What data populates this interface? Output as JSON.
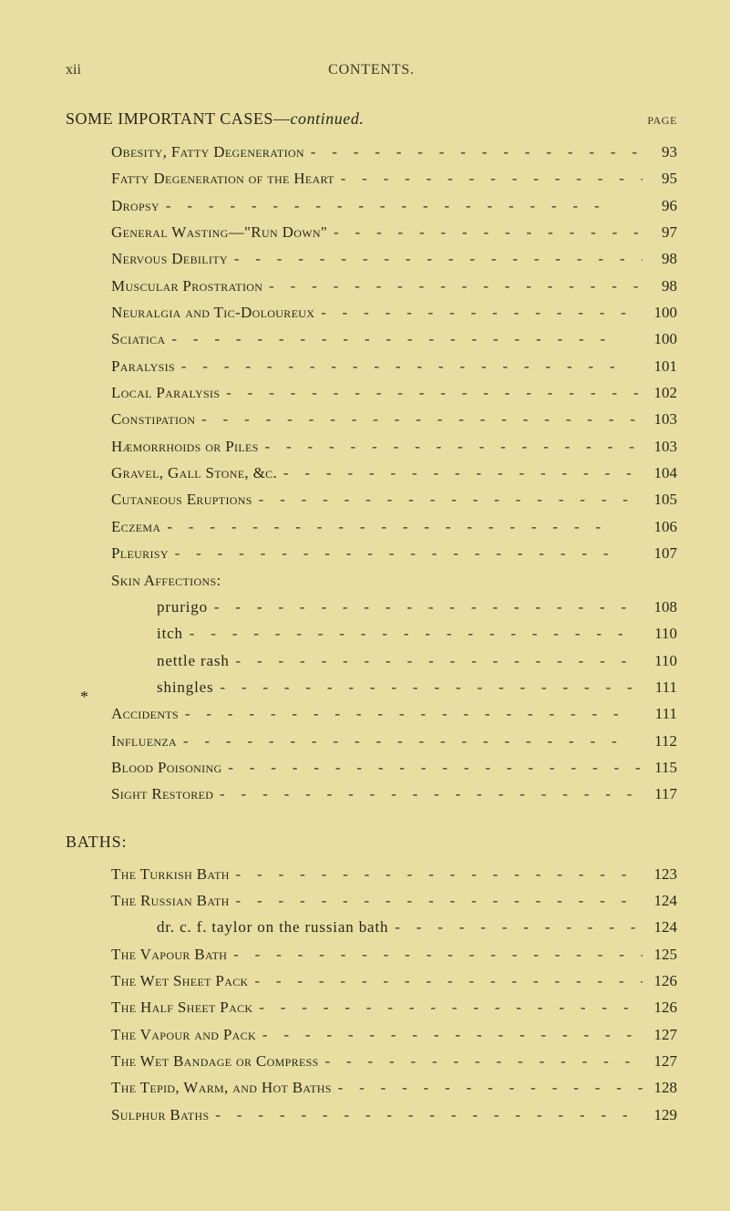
{
  "colors": {
    "background": "#e8dea2",
    "text": "#2b2518",
    "muted": "#3b3322"
  },
  "fonts": {
    "body_family": "Times New Roman",
    "body_size_pt": 13,
    "heading_size_pt": 14,
    "small_caps_label_pt": 9
  },
  "header": {
    "page_number": "xii",
    "section_title": "CONTENTS."
  },
  "main_heading": {
    "prefix": "SOME IMPORTANT CASES—",
    "suffix_italic": "continued.",
    "page_label": "PAGE"
  },
  "asterisk_marker": "*",
  "cases": [
    {
      "label": "Obesity, Fatty Degeneration",
      "page": "93",
      "indent": 1
    },
    {
      "label": "Fatty Degeneration of the Heart",
      "page": "95",
      "indent": 1
    },
    {
      "label": "Dropsy",
      "page": "96",
      "indent": 1
    },
    {
      "label": "General Wasting—\"Run Down\"",
      "page": "97",
      "indent": 1
    },
    {
      "label": "Nervous Debility",
      "page": "98",
      "indent": 1
    },
    {
      "label": "Muscular Prostration",
      "page": "98",
      "indent": 1
    },
    {
      "label": "Neuralgia and Tic-Doloureux",
      "page": "100",
      "indent": 1
    },
    {
      "label": "Sciatica",
      "page": "100",
      "indent": 1
    },
    {
      "label": "Paralysis",
      "page": "101",
      "indent": 1
    },
    {
      "label": "Local Paralysis",
      "page": "102",
      "indent": 1
    },
    {
      "label": "Constipation",
      "page": "103",
      "indent": 1
    },
    {
      "label": "Hæmorrhoids or Piles",
      "page": "103",
      "indent": 1
    },
    {
      "label": "Gravel, Gall Stone, &c.",
      "page": "104",
      "indent": 1
    },
    {
      "label": "Cutaneous Eruptions",
      "page": "105",
      "indent": 1
    },
    {
      "label": "Eczema",
      "page": "106",
      "indent": 1
    },
    {
      "label": "Pleurisy",
      "page": "107",
      "indent": 1
    }
  ],
  "skin_heading": "Skin Affections:",
  "skin": [
    {
      "label": "prurigo",
      "page": "108",
      "indent": 2,
      "lowercase": true
    },
    {
      "label": "itch",
      "page": "110",
      "indent": 2,
      "lowercase": true
    },
    {
      "label": "nettle rash",
      "page": "110",
      "indent": 2,
      "lowercase": true
    },
    {
      "label": "shingles",
      "page": "111",
      "indent": 2,
      "lowercase": true
    }
  ],
  "after_skin": [
    {
      "label": "Accidents",
      "page": "111",
      "indent": 1
    },
    {
      "label": "Influenza",
      "page": "112",
      "indent": 1
    },
    {
      "label": "Blood Poisoning",
      "page": "115",
      "indent": 1
    },
    {
      "label": "Sight Restored",
      "page": "117",
      "indent": 1
    }
  ],
  "baths_heading": "BATHS:",
  "baths": [
    {
      "label": "The Turkish Bath",
      "page": "123",
      "indent": 1
    },
    {
      "label": "The Russian Bath",
      "page": "124",
      "indent": 1
    },
    {
      "label": "dr. c. f. taylor on the russian bath",
      "page": "124",
      "indent": 2,
      "lowercase": true
    },
    {
      "label": "The Vapour Bath",
      "page": "125",
      "indent": 1
    },
    {
      "label": "The Wet Sheet Pack",
      "page": "126",
      "indent": 1
    },
    {
      "label": "The Half Sheet Pack",
      "page": "126",
      "indent": 1
    },
    {
      "label": "The Vapour and Pack",
      "page": "127",
      "indent": 1
    },
    {
      "label": "The Wet Bandage or Compress",
      "page": "127",
      "indent": 1
    },
    {
      "label": "The Tepid, Warm, and Hot Baths",
      "page": "128",
      "indent": 1
    },
    {
      "label": "Sulphur Baths",
      "page": "129",
      "indent": 1
    }
  ],
  "leader": "-  -  -  -  -  -  -  -  -  -  -  -  -  -  -  -  -  -  -  -  -"
}
